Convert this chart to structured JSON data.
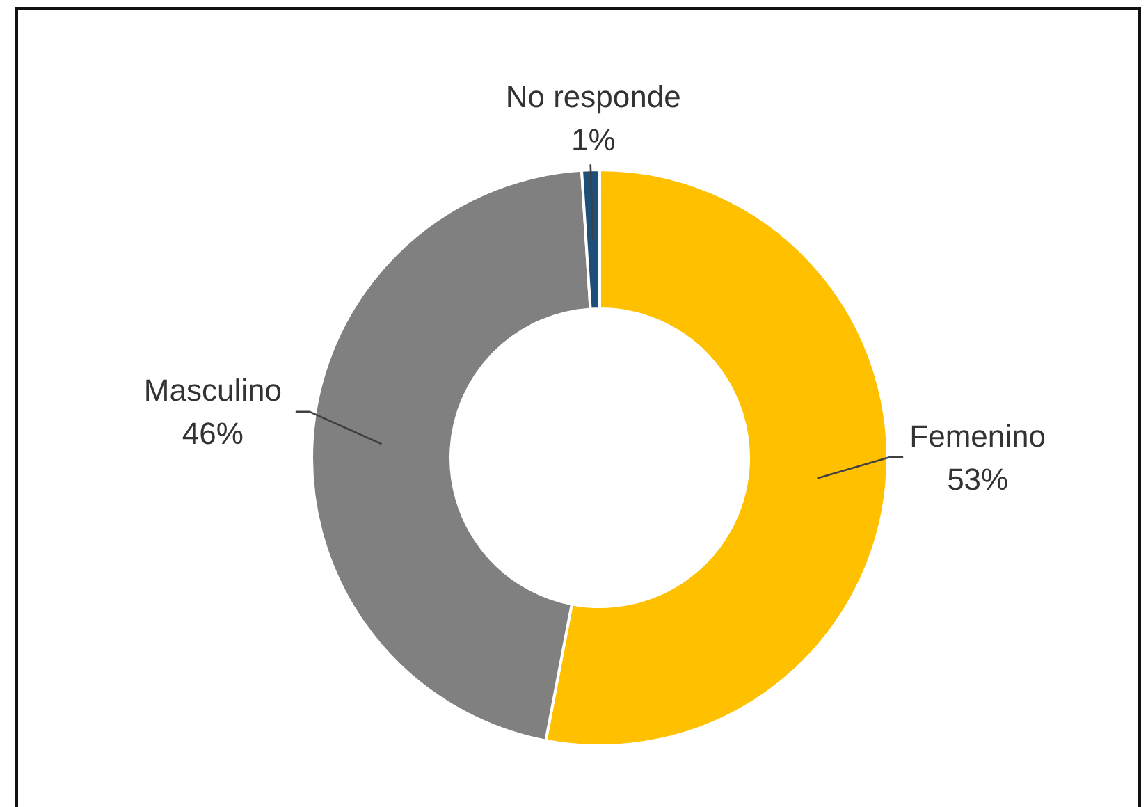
{
  "chart_data": {
    "type": "donut",
    "categories": [
      "Femenino",
      "Masculino",
      "No responde"
    ],
    "values": [
      53,
      46,
      1
    ],
    "colors": [
      "#ffc000",
      "#808080",
      "#1f4e79"
    ],
    "value_labels": [
      "53%",
      "46%",
      "1%"
    ]
  }
}
